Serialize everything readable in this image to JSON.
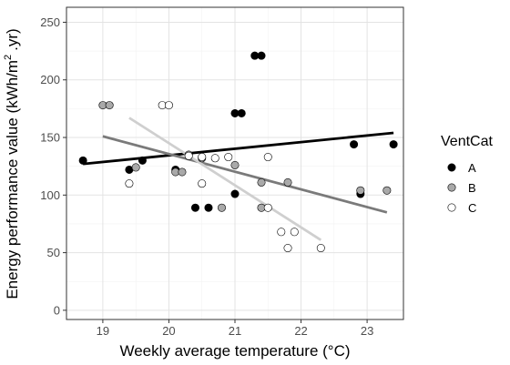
{
  "chart_data": {
    "type": "scatter",
    "xlabel": "Weekly average temperature (°C)",
    "ylabel_main": "Energy performance value (kWh/m",
    "ylabel_sup": "2",
    "ylabel_tail": ".yr)",
    "xlim": [
      18.45,
      23.55
    ],
    "ylim": [
      -8,
      263
    ],
    "x_ticks": [
      19,
      20,
      21,
      22,
      23
    ],
    "x_tick_labels": [
      "19",
      "20",
      "21",
      "22",
      "23"
    ],
    "y_ticks": [
      0,
      50,
      100,
      150,
      200,
      250
    ],
    "y_tick_labels": [
      "0",
      "50",
      "100",
      "150",
      "200",
      "250"
    ],
    "grid": true,
    "legend": {
      "title": "VentCat",
      "placement": "right"
    },
    "series": [
      {
        "name": "A",
        "fill": "#000000",
        "line_color": "#000000",
        "points": [
          [
            18.7,
            130
          ],
          [
            19.4,
            122
          ],
          [
            19.6,
            130
          ],
          [
            20.1,
            122
          ],
          [
            20.4,
            89
          ],
          [
            20.6,
            89
          ],
          [
            21.0,
            101
          ],
          [
            21.0,
            171
          ],
          [
            21.1,
            171
          ],
          [
            21.3,
            221
          ],
          [
            21.4,
            221
          ],
          [
            22.8,
            144
          ],
          [
            22.9,
            101
          ],
          [
            23.4,
            144
          ]
        ],
        "trend": [
          [
            18.7,
            127
          ],
          [
            23.4,
            154
          ]
        ]
      },
      {
        "name": "B",
        "fill": "#a9a9a9",
        "line_color": "#7a7a7a",
        "points": [
          [
            19.0,
            178
          ],
          [
            19.1,
            178
          ],
          [
            19.5,
            124
          ],
          [
            20.1,
            120
          ],
          [
            20.2,
            120
          ],
          [
            20.3,
            135
          ],
          [
            20.5,
            132
          ],
          [
            20.8,
            89
          ],
          [
            21.0,
            126
          ],
          [
            21.4,
            111
          ],
          [
            21.4,
            89
          ],
          [
            21.8,
            111
          ],
          [
            22.9,
            104
          ],
          [
            23.3,
            104
          ]
        ],
        "trend": [
          [
            19.0,
            151
          ],
          [
            23.3,
            85
          ]
        ]
      },
      {
        "name": "C",
        "fill": "#ffffff",
        "line_color": "#cfcfcf",
        "points": [
          [
            19.4,
            110
          ],
          [
            19.9,
            178
          ],
          [
            20.0,
            178
          ],
          [
            20.3,
            134
          ],
          [
            20.5,
            133
          ],
          [
            20.5,
            110
          ],
          [
            20.7,
            132
          ],
          [
            20.9,
            133
          ],
          [
            21.5,
            133
          ],
          [
            21.5,
            89
          ],
          [
            21.7,
            68
          ],
          [
            21.8,
            54
          ],
          [
            21.9,
            68
          ],
          [
            22.3,
            54
          ]
        ],
        "trend": [
          [
            19.4,
            167
          ],
          [
            22.3,
            61
          ]
        ]
      }
    ]
  }
}
